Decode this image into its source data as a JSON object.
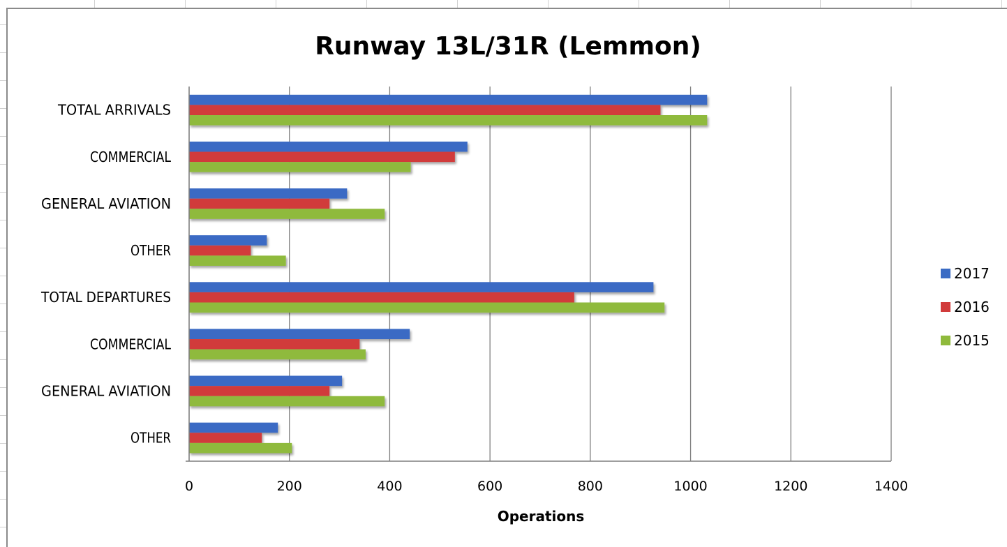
{
  "chart_data": {
    "type": "bar",
    "orientation": "horizontal",
    "title": "Runway 13L/31R (Lemmon)",
    "xlabel": "Operations",
    "ylabel": "",
    "xlim": [
      0,
      1400
    ],
    "x_ticks": [
      "0",
      "200",
      "400",
      "600",
      "800",
      "1000",
      "1200",
      "1400"
    ],
    "grid": "vertical major gridlines",
    "legend_position": "right",
    "categories": [
      "TOTAL ARRIVALS",
      "COMMERCIAL",
      "GENERAL AVIATION",
      "OTHER",
      "TOTAL DEPARTURES",
      "COMMERCIAL",
      "GENERAL AVIATION",
      "OTHER"
    ],
    "series": [
      {
        "name": "2017",
        "color": "#3A6BC4",
        "values": [
          1033,
          555,
          315,
          155,
          926,
          440,
          305,
          177
        ]
      },
      {
        "name": "2016",
        "color": "#D13B3B",
        "values": [
          940,
          530,
          280,
          123,
          768,
          340,
          280,
          145
        ]
      },
      {
        "name": "2015",
        "color": "#8FBA3C",
        "values": [
          1033,
          442,
          390,
          193,
          948,
          352,
          390,
          205
        ]
      }
    ],
    "legend_order": [
      "2017",
      "2016",
      "2015"
    ]
  }
}
